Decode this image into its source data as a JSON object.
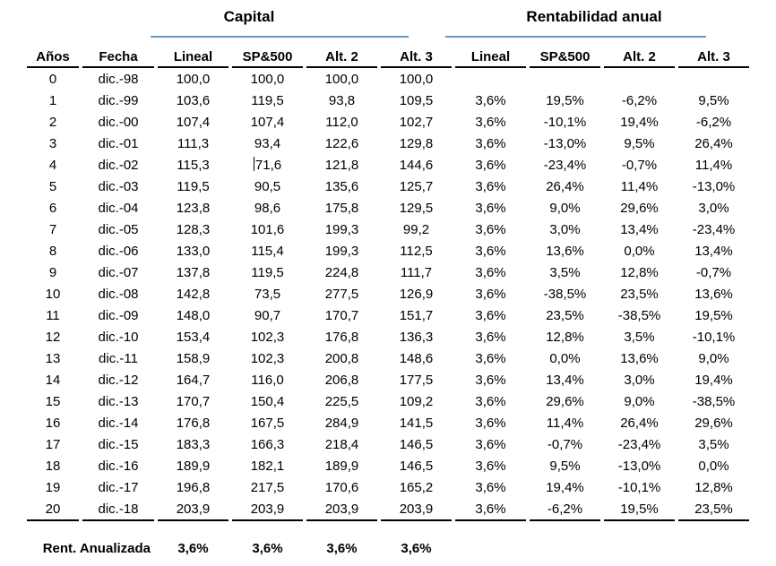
{
  "colors": {
    "accent_line": "#6699cc",
    "rule_line": "#000000",
    "text": "#000000"
  },
  "table": {
    "group_headers": [
      {
        "label": "Capital"
      },
      {
        "label": "Rentabilidad anual"
      }
    ],
    "columns": [
      "Años",
      "Fecha",
      "Lineal",
      "SP&500",
      "Alt. 2",
      "Alt. 3",
      "Lineal",
      "SP&500",
      "Alt. 2",
      "Alt. 3"
    ],
    "rows": [
      [
        "0",
        "dic.-98",
        "100,0",
        "100,0",
        "100,0",
        "100,0",
        "",
        "",
        "",
        ""
      ],
      [
        "1",
        "dic.-99",
        "103,6",
        "119,5",
        "93,8",
        "109,5",
        "3,6%",
        "19,5%",
        "-6,2%",
        "9,5%"
      ],
      [
        "2",
        "dic.-00",
        "107,4",
        "107,4",
        "112,0",
        "102,7",
        "3,6%",
        "-10,1%",
        "19,4%",
        "-6,2%"
      ],
      [
        "3",
        "dic.-01",
        "111,3",
        "93,4",
        "122,6",
        "129,8",
        "3,6%",
        "-13,0%",
        "9,5%",
        "26,4%"
      ],
      [
        "4",
        "dic.-02",
        "115,3",
        "71,6",
        "121,8",
        "144,6",
        "3,6%",
        "-23,4%",
        "-0,7%",
        "11,4%"
      ],
      [
        "5",
        "dic.-03",
        "119,5",
        "90,5",
        "135,6",
        "125,7",
        "3,6%",
        "26,4%",
        "11,4%",
        "-13,0%"
      ],
      [
        "6",
        "dic.-04",
        "123,8",
        "98,6",
        "175,8",
        "129,5",
        "3,6%",
        "9,0%",
        "29,6%",
        "3,0%"
      ],
      [
        "7",
        "dic.-05",
        "128,3",
        "101,6",
        "199,3",
        "99,2",
        "3,6%",
        "3,0%",
        "13,4%",
        "-23,4%"
      ],
      [
        "8",
        "dic.-06",
        "133,0",
        "115,4",
        "199,3",
        "112,5",
        "3,6%",
        "13,6%",
        "0,0%",
        "13,4%"
      ],
      [
        "9",
        "dic.-07",
        "137,8",
        "119,5",
        "224,8",
        "111,7",
        "3,6%",
        "3,5%",
        "12,8%",
        "-0,7%"
      ],
      [
        "10",
        "dic.-08",
        "142,8",
        "73,5",
        "277,5",
        "126,9",
        "3,6%",
        "-38,5%",
        "23,5%",
        "13,6%"
      ],
      [
        "11",
        "dic.-09",
        "148,0",
        "90,7",
        "170,7",
        "151,7",
        "3,6%",
        "23,5%",
        "-38,5%",
        "19,5%"
      ],
      [
        "12",
        "dic.-10",
        "153,4",
        "102,3",
        "176,8",
        "136,3",
        "3,6%",
        "12,8%",
        "3,5%",
        "-10,1%"
      ],
      [
        "13",
        "dic.-11",
        "158,9",
        "102,3",
        "200,8",
        "148,6",
        "3,6%",
        "0,0%",
        "13,6%",
        "9,0%"
      ],
      [
        "14",
        "dic.-12",
        "164,7",
        "116,0",
        "206,8",
        "177,5",
        "3,6%",
        "13,4%",
        "3,0%",
        "19,4%"
      ],
      [
        "15",
        "dic.-13",
        "170,7",
        "150,4",
        "225,5",
        "109,2",
        "3,6%",
        "29,6%",
        "9,0%",
        "-38,5%"
      ],
      [
        "16",
        "dic.-14",
        "176,8",
        "167,5",
        "284,9",
        "141,5",
        "3,6%",
        "11,4%",
        "26,4%",
        "29,6%"
      ],
      [
        "17",
        "dic.-15",
        "183,3",
        "166,3",
        "218,4",
        "146,5",
        "3,6%",
        "-0,7%",
        "-23,4%",
        "3,5%"
      ],
      [
        "18",
        "dic.-16",
        "189,9",
        "182,1",
        "189,9",
        "146,5",
        "3,6%",
        "9,5%",
        "-13,0%",
        "0,0%"
      ],
      [
        "19",
        "dic.-17",
        "196,8",
        "217,5",
        "170,6",
        "165,2",
        "3,6%",
        "19,4%",
        "-10,1%",
        "12,8%"
      ],
      [
        "20",
        "dic.-18",
        "203,9",
        "203,9",
        "203,9",
        "203,9",
        "3,6%",
        "-6,2%",
        "19,5%",
        "23,5%"
      ]
    ],
    "cursor": {
      "row_index": 4,
      "cell_index": 3
    },
    "footer": {
      "label": "Rent. Anualizada",
      "values": [
        "3,6%",
        "3,6%",
        "3,6%",
        "3,6%"
      ]
    }
  }
}
